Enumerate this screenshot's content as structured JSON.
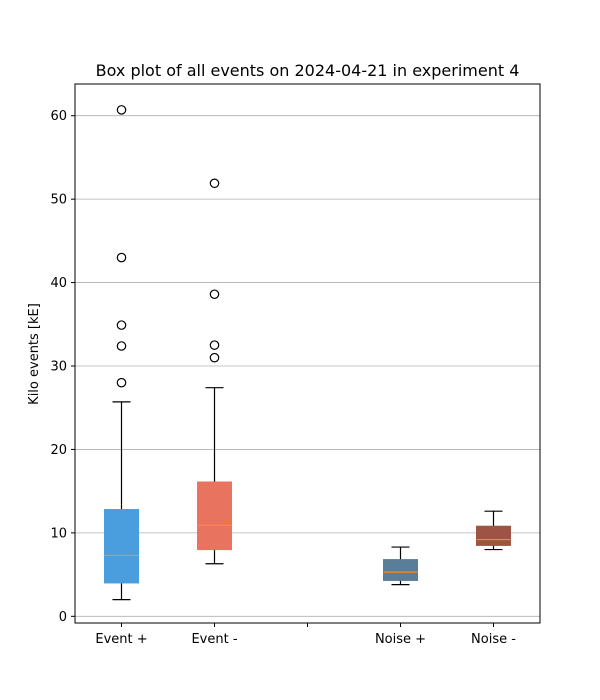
{
  "chart_data": {
    "type": "box",
    "title": "Box plot of all events on 2024-04-21 in experiment 4",
    "xlabel": "",
    "ylabel": "Kilo events [kE]",
    "ylim": [
      -0.8,
      63.8
    ],
    "yticks": [
      0,
      10,
      20,
      30,
      40,
      50,
      60
    ],
    "grid": "y",
    "categories": [
      "Event +",
      "Event -",
      "",
      "Noise +",
      "Noise -"
    ],
    "boxes": [
      {
        "name": "Event +",
        "position": 1,
        "whisker_low": 2.0,
        "q1": 4.0,
        "median": 7.3,
        "q3": 12.8,
        "whisker_high": 25.7,
        "outliers": [
          28.0,
          32.4,
          34.9,
          43.0,
          60.7
        ],
        "color": "#4a9ede"
      },
      {
        "name": "Event -",
        "position": 2,
        "whisker_low": 6.3,
        "q1": 8.0,
        "median": 10.9,
        "q3": 16.1,
        "whisker_high": 27.4,
        "outliers": [
          31.0,
          32.5,
          38.6,
          51.9
        ],
        "color": "#e8735f"
      },
      {
        "name": "Noise +",
        "position": 4,
        "whisker_low": 3.8,
        "q1": 4.3,
        "median": 5.3,
        "q3": 6.8,
        "whisker_high": 8.3,
        "outliers": [],
        "color": "#5a7d99"
      },
      {
        "name": "Noise -",
        "position": 5,
        "whisker_low": 8.0,
        "q1": 8.5,
        "median": 9.2,
        "q3": 10.8,
        "whisker_high": 12.6,
        "outliers": [],
        "color": "#9e5445"
      }
    ],
    "median_color": "#ff8c1a"
  }
}
